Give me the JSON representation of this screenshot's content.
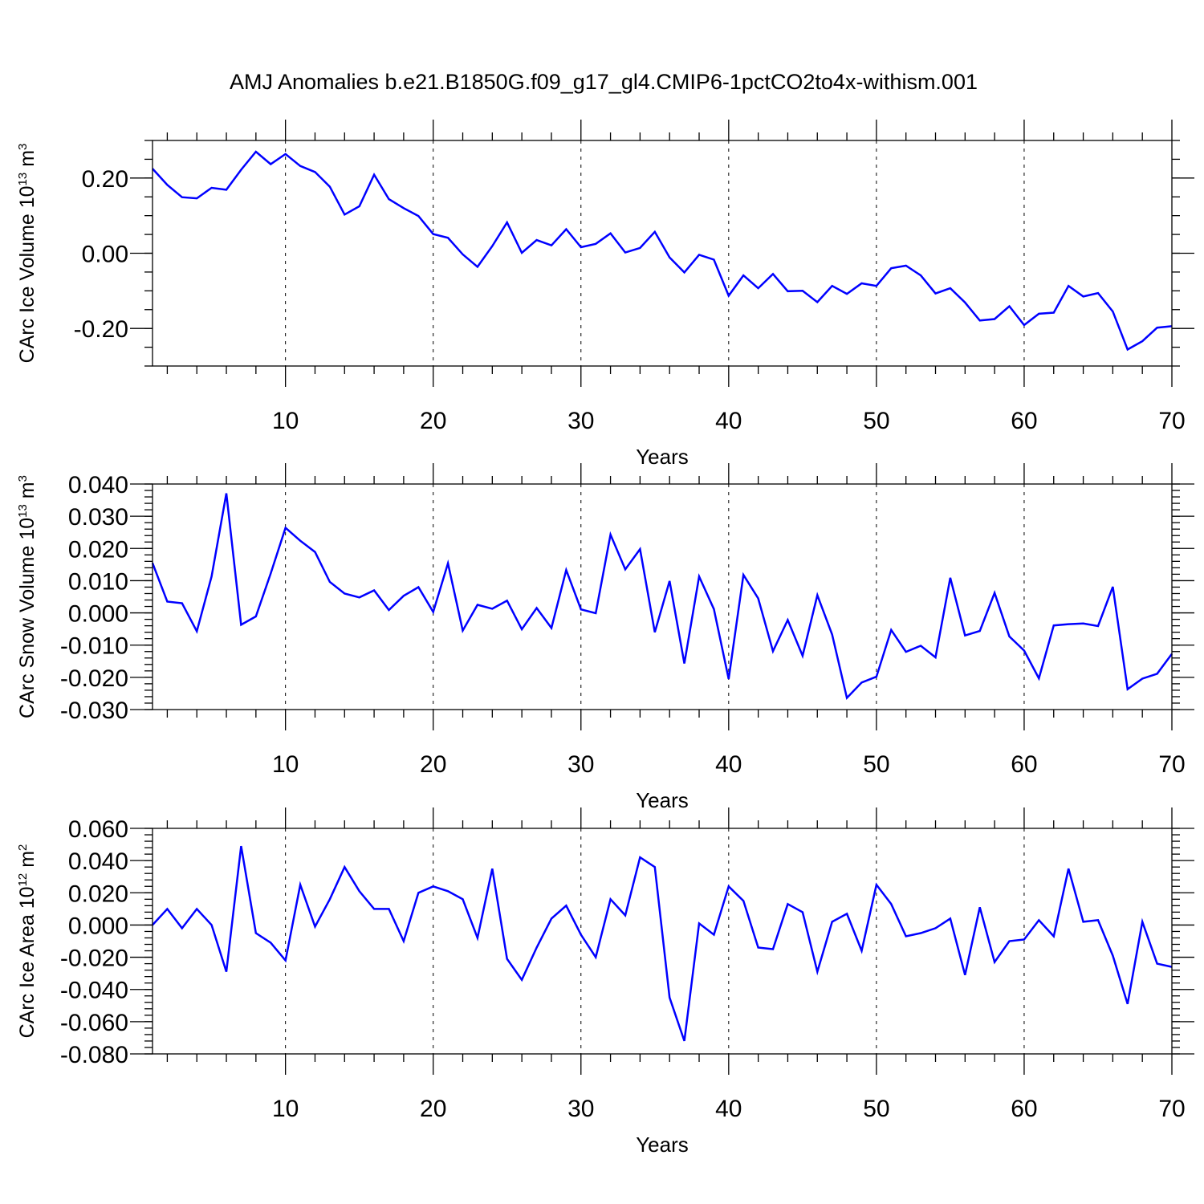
{
  "title": "AMJ Anomalies b.e21.B1850G.f09_g17_gl4.CMIP6-1pctCO2to4x-withism.001",
  "line_color": "#0000ff",
  "chart_data": [
    {
      "type": "line",
      "title": "AMJ Anomalies b.e21.B1850G.f09_g17_gl4.CMIP6-1pctCO2to4x-withism.001",
      "xlabel": "Years",
      "ylabel": {
        "prefix": "CArc Ice Volume 10",
        "exponent": "13",
        "unit": " m",
        "unit_exponent": "3"
      },
      "xlim": [
        1,
        70
      ],
      "ylim": [
        -0.3,
        0.3
      ],
      "grid": "dashed vertical at major x ticks",
      "x_major_ticks": [
        10,
        20,
        30,
        40,
        50,
        60,
        70
      ],
      "y_major_ticks": [
        -0.2,
        0.0,
        0.2
      ],
      "y_tick_labels": [
        "-0.20",
        "0.00",
        "0.20"
      ],
      "y_minor_step": 0.05,
      "series": [
        {
          "name": "CArc Ice Volume",
          "x": [
            1,
            2,
            3,
            4,
            5,
            6,
            7,
            8,
            9,
            10,
            11,
            12,
            13,
            14,
            15,
            16,
            17,
            18,
            19,
            20,
            21,
            22,
            23,
            24,
            25,
            26,
            27,
            28,
            29,
            30,
            31,
            32,
            33,
            34,
            35,
            36,
            37,
            38,
            39,
            40,
            41,
            42,
            43,
            44,
            45,
            46,
            47,
            48,
            49,
            50,
            51,
            52,
            53,
            54,
            55,
            56,
            57,
            58,
            59,
            60,
            61,
            62,
            63,
            64,
            65,
            66,
            67,
            68,
            69,
            70
          ],
          "values": [
            0.225,
            0.182,
            0.149,
            0.146,
            0.174,
            0.169,
            0.222,
            0.27,
            0.237,
            0.264,
            0.232,
            0.216,
            0.177,
            0.103,
            0.125,
            0.209,
            0.144,
            0.12,
            0.099,
            0.051,
            0.041,
            -0.003,
            -0.036,
            0.019,
            0.082,
            0.001,
            0.035,
            0.021,
            0.064,
            0.016,
            0.025,
            0.053,
            0.002,
            0.014,
            0.057,
            -0.011,
            -0.051,
            -0.004,
            -0.017,
            -0.113,
            -0.059,
            -0.093,
            -0.055,
            -0.101,
            -0.1,
            -0.13,
            -0.087,
            -0.108,
            -0.08,
            -0.087,
            -0.04,
            -0.033,
            -0.059,
            -0.107,
            -0.093,
            -0.131,
            -0.179,
            -0.175,
            -0.141,
            -0.191,
            -0.161,
            -0.158,
            -0.087,
            -0.115,
            -0.106,
            -0.155,
            -0.256,
            -0.234,
            -0.198,
            -0.194
          ]
        }
      ]
    },
    {
      "type": "line",
      "xlabel": "Years",
      "ylabel": {
        "prefix": "CArc Snow Volume 10",
        "exponent": "13",
        "unit": " m",
        "unit_exponent": "3"
      },
      "xlim": [
        1,
        70
      ],
      "ylim": [
        -0.03,
        0.04
      ],
      "grid": "dashed vertical at major x ticks",
      "x_major_ticks": [
        10,
        20,
        30,
        40,
        50,
        60,
        70
      ],
      "y_major_ticks": [
        -0.03,
        -0.02,
        -0.01,
        0.0,
        0.01,
        0.02,
        0.03,
        0.04
      ],
      "y_tick_labels": [
        "-0.030",
        "-0.020",
        "-0.010",
        "0.000",
        "0.010",
        "0.020",
        "0.030",
        "0.040"
      ],
      "y_minor_step": 0.002,
      "series": [
        {
          "name": "CArc Snow Volume",
          "x": [
            1,
            2,
            3,
            4,
            5,
            6,
            7,
            8,
            9,
            10,
            11,
            12,
            13,
            14,
            15,
            16,
            17,
            18,
            19,
            20,
            21,
            22,
            23,
            24,
            25,
            26,
            27,
            28,
            29,
            30,
            31,
            32,
            33,
            34,
            35,
            36,
            37,
            38,
            39,
            40,
            41,
            42,
            43,
            44,
            45,
            46,
            47,
            48,
            49,
            50,
            51,
            52,
            53,
            54,
            55,
            56,
            57,
            58,
            59,
            60,
            61,
            62,
            63,
            64,
            65,
            66,
            67,
            68,
            69,
            70
          ],
          "values": [
            0.0155,
            0.0035,
            0.003,
            -0.0057,
            0.0113,
            0.0371,
            -0.0037,
            -0.0011,
            0.0122,
            0.0264,
            0.0224,
            0.0189,
            0.0096,
            0.006,
            0.0048,
            0.007,
            0.0009,
            0.0053,
            0.008,
            0.0003,
            0.0154,
            -0.0055,
            0.0025,
            0.0013,
            0.0038,
            -0.0051,
            0.0015,
            -0.0047,
            0.0133,
            0.0011,
            -0.0001,
            0.0243,
            0.0135,
            0.0198,
            -0.006,
            0.0099,
            -0.0157,
            0.0113,
            0.0012,
            -0.0205,
            0.0118,
            0.0045,
            -0.0119,
            -0.0022,
            -0.0133,
            0.0055,
            -0.0067,
            -0.0264,
            -0.0216,
            -0.0198,
            -0.0053,
            -0.0121,
            -0.0102,
            -0.0138,
            0.0109,
            -0.007,
            -0.0056,
            0.0062,
            -0.0073,
            -0.0117,
            -0.0203,
            -0.0039,
            -0.0035,
            -0.0033,
            -0.0041,
            0.0081,
            -0.0237,
            -0.0204,
            -0.0189,
            -0.0127
          ]
        }
      ]
    },
    {
      "type": "line",
      "xlabel": "Years",
      "ylabel": {
        "prefix": "CArc Ice Area 10",
        "exponent": "12",
        "unit": " m",
        "unit_exponent": "2"
      },
      "xlim": [
        1,
        70
      ],
      "ylim": [
        -0.08,
        0.06
      ],
      "grid": "dashed vertical at major x ticks",
      "x_major_ticks": [
        10,
        20,
        30,
        40,
        50,
        60,
        70
      ],
      "y_major_ticks": [
        -0.08,
        -0.06,
        -0.04,
        -0.02,
        0.0,
        0.02,
        0.04,
        0.06
      ],
      "y_tick_labels": [
        "-0.080",
        "-0.060",
        "-0.040",
        "-0.020",
        "0.000",
        "0.020",
        "0.040",
        "0.060"
      ],
      "y_minor_step": 0.004,
      "series": [
        {
          "name": "CArc Ice Area",
          "x": [
            1,
            2,
            3,
            4,
            5,
            6,
            7,
            8,
            9,
            10,
            11,
            12,
            13,
            14,
            15,
            16,
            17,
            18,
            19,
            20,
            21,
            22,
            23,
            24,
            25,
            26,
            27,
            28,
            29,
            30,
            31,
            32,
            33,
            34,
            35,
            36,
            37,
            38,
            39,
            40,
            41,
            42,
            43,
            44,
            45,
            46,
            47,
            48,
            49,
            50,
            51,
            52,
            53,
            54,
            55,
            56,
            57,
            58,
            59,
            60,
            61,
            62,
            63,
            64,
            65,
            66,
            67,
            68,
            69,
            70
          ],
          "values": [
            0.0,
            0.01,
            -0.002,
            0.01,
            0.0,
            -0.029,
            0.049,
            -0.005,
            -0.011,
            -0.022,
            0.025,
            -0.001,
            0.016,
            0.036,
            0.021,
            0.01,
            0.01,
            -0.01,
            0.02,
            0.024,
            0.021,
            0.016,
            -0.008,
            0.035,
            -0.021,
            -0.034,
            -0.014,
            0.004,
            0.012,
            -0.006,
            -0.02,
            0.016,
            0.006,
            0.042,
            0.036,
            -0.045,
            -0.072,
            0.001,
            -0.006,
            0.024,
            0.015,
            -0.014,
            -0.015,
            0.013,
            0.008,
            -0.029,
            0.002,
            0.007,
            -0.016,
            0.025,
            0.013,
            -0.007,
            -0.005,
            -0.002,
            0.004,
            -0.031,
            0.011,
            -0.023,
            -0.01,
            -0.009,
            0.003,
            -0.007,
            0.035,
            0.002,
            0.003,
            -0.019,
            -0.049,
            0.002,
            -0.024,
            -0.026
          ]
        }
      ]
    }
  ]
}
